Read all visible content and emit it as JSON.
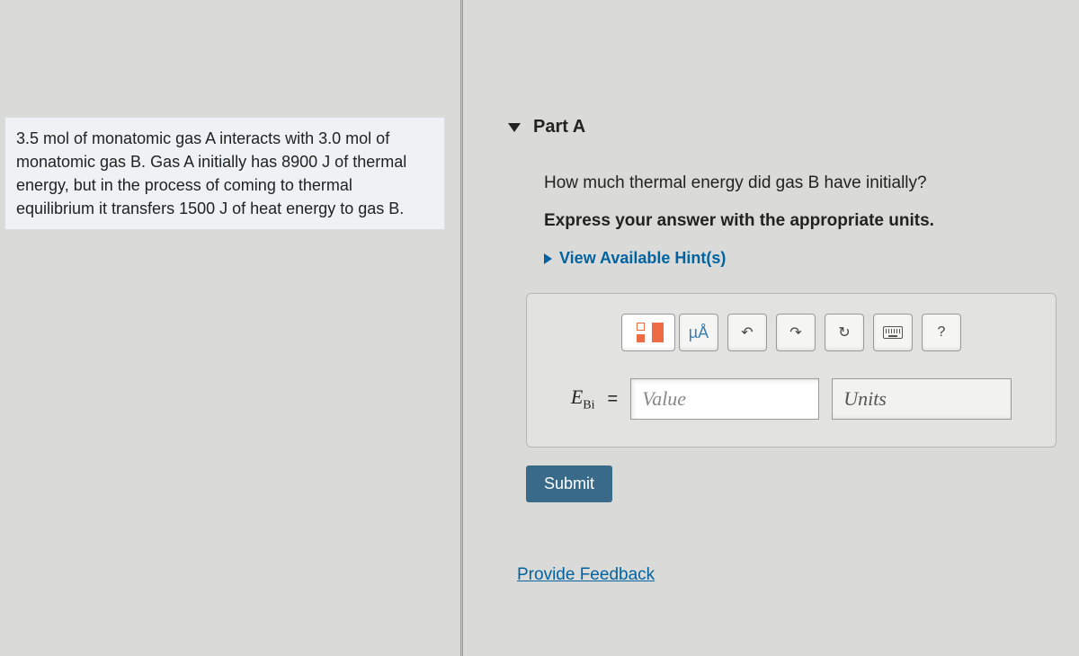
{
  "problem": {
    "text_parts": [
      "3.5 mol of monatomic gas A interacts with 3.0 mol of monatomic gas B. Gas A initially has 8900 J of thermal energy, but in the process of coming to thermal equilibrium it transfers 1500 J of heat energy to gas B."
    ]
  },
  "part": {
    "label": "Part A",
    "question": "How much thermal energy did gas B have initially?",
    "instruction": "Express your answer with the appropriate units.",
    "hints_label": "View Available Hint(s)"
  },
  "toolbar": {
    "units_symbol": "µÅ",
    "undo": "↶",
    "redo": "↷",
    "reset": "↻",
    "help": "?"
  },
  "answer": {
    "variable": "E",
    "subscript": "Bi",
    "equals": "=",
    "value_placeholder": "Value",
    "units_placeholder": "Units"
  },
  "buttons": {
    "submit": "Submit"
  },
  "feedback": {
    "link": "Provide Feedback"
  }
}
